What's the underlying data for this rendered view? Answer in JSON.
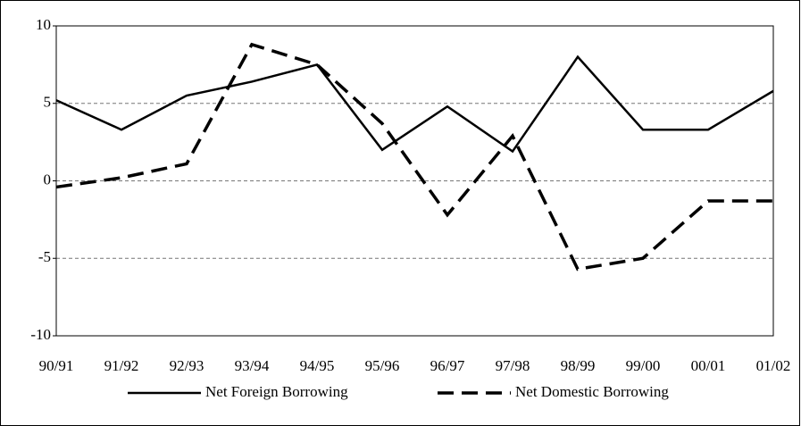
{
  "chart_data": {
    "type": "line",
    "categories": [
      "90/91",
      "91/92",
      "92/93",
      "93/94",
      "94/95",
      "95/96",
      "96/97",
      "97/98",
      "98/99",
      "99/00",
      "00/01",
      "01/02"
    ],
    "series": [
      {
        "name": "Net Foreign Borrowing",
        "color": "#000000",
        "dash": "solid",
        "values": [
          5.2,
          3.3,
          5.5,
          6.4,
          7.5,
          2.0,
          4.8,
          1.9,
          8.0,
          3.3,
          3.3,
          5.8
        ]
      },
      {
        "name": "Net Domestic Borrowing",
        "color": "#000000",
        "dash": "dashed",
        "values": [
          -0.4,
          0.2,
          1.1,
          8.8,
          7.5,
          3.7,
          -2.2,
          2.9,
          -5.7,
          -5.0,
          -1.3,
          -1.3
        ]
      }
    ],
    "ylim": [
      -10,
      10
    ],
    "yticks": [
      -10,
      -5,
      0,
      5,
      10
    ],
    "grid": true,
    "legend": "bottom"
  }
}
